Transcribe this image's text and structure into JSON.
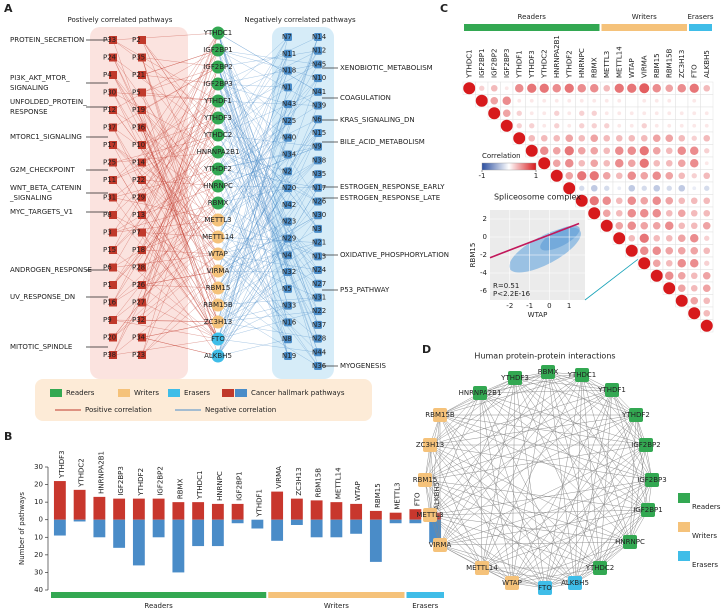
{
  "panels": {
    "a": "A",
    "b": "B",
    "c": "C",
    "d": "D"
  },
  "network": {
    "left_title": "Postively correlated pathways",
    "right_title": "Negatively correlated pathways",
    "positive_color": "#c0392b",
    "negative_color": "#4a8cc8",
    "positive_nodes": [
      [
        "P33",
        "P24",
        "P4",
        "P30",
        "P12",
        "P37",
        "P17",
        "P25",
        "P11",
        "P31",
        "P8",
        "P3",
        "P15",
        "P6",
        "P1",
        "P16",
        "P9",
        "P20",
        "P38"
      ],
      [
        "P2",
        "P35",
        "P21",
        "P5",
        "P19",
        "P36",
        "P10",
        "P14",
        "P22",
        "P29",
        "P13",
        "P7",
        "P18",
        "P28",
        "P26",
        "P27",
        "P32",
        "P34",
        "P23"
      ]
    ],
    "negative_nodes": [
      [
        "N7",
        "N11",
        "N18",
        "N1",
        "N43",
        "N25",
        "N40",
        "N34",
        "N2",
        "N20",
        "N42",
        "N23",
        "N29",
        "N4",
        "N32",
        "N5",
        "N33",
        "N16",
        "N8",
        "N19"
      ],
      [
        "N14",
        "N12",
        "N45",
        "N10",
        "N41",
        "N39",
        "N6",
        "N15",
        "N9",
        "N38",
        "N35",
        "N17",
        "N26",
        "N30",
        "N3",
        "N21",
        "N13",
        "N24",
        "N27",
        "N31",
        "N22",
        "N37",
        "N28",
        "N44",
        "N36"
      ]
    ],
    "genes": [
      {
        "name": "YTHDC1",
        "color": "#33a852"
      },
      {
        "name": "IGF2BP1",
        "color": "#33a852"
      },
      {
        "name": "IGF2BP2",
        "color": "#33a852"
      },
      {
        "name": "IGF2BP3",
        "color": "#33a852"
      },
      {
        "name": "YTHDF1",
        "color": "#33a852"
      },
      {
        "name": "YTHDF3",
        "color": "#33a852"
      },
      {
        "name": "YTHDC2",
        "color": "#33a852"
      },
      {
        "name": "HNRNPA2B1",
        "color": "#33a852"
      },
      {
        "name": "YTHDF2",
        "color": "#33a852"
      },
      {
        "name": "HNRNPC",
        "color": "#33a852"
      },
      {
        "name": "RBMX",
        "color": "#33a852"
      },
      {
        "name": "METTL3",
        "color": "#f5c27a"
      },
      {
        "name": "METTL14",
        "color": "#f5c27a"
      },
      {
        "name": "WTAP",
        "color": "#f5c27a"
      },
      {
        "name": "VIRMA",
        "color": "#f5c27a"
      },
      {
        "name": "RBM15",
        "color": "#f5c27a"
      },
      {
        "name": "RBM15B",
        "color": "#f5c27a"
      },
      {
        "name": "ZC3H13",
        "color": "#f5c27a"
      },
      {
        "name": "FTO",
        "color": "#3fbde8"
      },
      {
        "name": "ALKBH5",
        "color": "#3fbde8"
      }
    ],
    "left_annotations": [
      [
        "PROTEIN_SECRETION"
      ],
      [
        "PI3K_AKT_MTOR_",
        "SIGNALING"
      ],
      [
        "UNFOLDED_PROTEIN_",
        "RESPONSE"
      ],
      [
        "MTORC1_SIGNALING"
      ],
      [
        "G2M_CHECKPOINT"
      ],
      [
        "WNT_BETA_CATENIN",
        "_SIGNALING"
      ],
      [
        "MYC_TARGETS_V1"
      ],
      [
        "ANDROGEN_RESPONSE"
      ],
      [
        "UV_RESPONSE_DN"
      ],
      [
        "MITOTIC_SPINDLE"
      ]
    ],
    "right_annotations": [
      [
        "XENOBIOTIC_METABOLISM"
      ],
      [
        "COAGULATION"
      ],
      [
        "KRAS_SIGNALING_DN"
      ],
      [
        "BILE_ACID_METABOLISM"
      ],
      [
        "ESTROGEN_RESPONSE_EARLY"
      ],
      [
        "ESTROGEN_RESPONSE_LATE"
      ],
      [
        "OXIDATIVE_PHOSPHORYLATION"
      ],
      [
        "P53_PATHWAY"
      ],
      [
        "MYOGENESIS"
      ]
    ],
    "legend": [
      {
        "label": "Readers",
        "shape": "rect",
        "colors": [
          "#33a852"
        ]
      },
      {
        "label": "Writers",
        "shape": "rect",
        "colors": [
          "#f5c27a"
        ]
      },
      {
        "label": "Erasers",
        "shape": "rect",
        "colors": [
          "#3fbde8"
        ]
      },
      {
        "label": "Cancer hallmark pathways",
        "shape": "rect",
        "colors": [
          "#c0392b",
          "#4a8cc8"
        ]
      },
      {
        "label": "Positive correlation",
        "shape": "line",
        "colors": [
          "#c0392b"
        ]
      },
      {
        "label": "Negative correlation",
        "shape": "line",
        "colors": [
          "#4a8cc8"
        ]
      }
    ]
  },
  "chart_data": [
    {
      "type": "bar",
      "y_label": "Number of pathways",
      "categories": [
        "YTHDF3",
        "YTHDC2",
        "HNRNPA2B1",
        "IGF2BP3",
        "YTHDF2",
        "IGF2BP2",
        "RBMX",
        "YTHDC1",
        "HNRNPC",
        "IGF2BP1",
        "YTHDF1",
        "VIRMA",
        "ZC3H13",
        "RBM15B",
        "METTL14",
        "WTAP",
        "RBM15",
        "METTL3",
        "FTO",
        "ALKBH5"
      ],
      "series": [
        {
          "color": "#c8372d",
          "values": [
            22,
            17,
            13,
            12,
            12,
            12,
            10,
            10,
            9,
            9,
            0,
            16,
            12,
            11,
            10,
            9,
            5,
            4,
            6,
            4
          ]
        },
        {
          "color": "#4a8cc8",
          "values": [
            -9,
            -1,
            -10,
            -16,
            -26,
            -10,
            -30,
            -15,
            -15,
            -2,
            -5,
            -12,
            -3,
            -10,
            -10,
            -8,
            -24,
            -2,
            -2,
            -13
          ]
        }
      ],
      "ylim": [
        -40,
        30
      ],
      "yticks": [
        30,
        20,
        10,
        0,
        {
          "value": -10,
          "label": "10"
        },
        {
          "value": -20,
          "label": "20"
        },
        {
          "value": -30,
          "label": "30"
        },
        {
          "value": -40,
          "label": "40"
        }
      ],
      "groups": [
        {
          "label": "Readers",
          "color": "#33a852",
          "size": 11
        },
        {
          "label": "Writers",
          "color": "#f5c27a",
          "size": 7
        },
        {
          "label": "Erasers",
          "color": "#3fbde8",
          "size": 2
        }
      ]
    },
    {
      "type": "heatmap",
      "categories": [
        "YTHDC1",
        "IGF2BP1",
        "IGF2BP2",
        "IGF2BP3",
        "YTHDF1",
        "YTHDF3",
        "YTHDC2",
        "HNRNPA2B1",
        "YTHDF2",
        "HNRNPC",
        "RBMX",
        "METTL3",
        "METTL14",
        "WTAP",
        "VIRMA",
        "RBM15",
        "RBM15B",
        "ZC3H13",
        "FTO",
        "ALKBH5"
      ],
      "values": [
        [
          1,
          0.2,
          0.3,
          0.1,
          0.5,
          0.6,
          0.6,
          0.5,
          0.6,
          0.5,
          0.5,
          0.3,
          0.6,
          0.6,
          0.7,
          0.5,
          0.4,
          0.5,
          0.6,
          0.3
        ],
        [
          1,
          0.4,
          0.5,
          0.1,
          0.1,
          0.1,
          0.1,
          0.1,
          0.1,
          0.1,
          0.1,
          0.1,
          0,
          0.1,
          0.1,
          0.1,
          0,
          0.1,
          0
        ],
        [
          1,
          0.4,
          0.2,
          0.1,
          0.1,
          0.2,
          0.1,
          0.2,
          0.2,
          0.1,
          0.1,
          0.1,
          0.1,
          0.1,
          0.1,
          0.1,
          0.1,
          0.1
        ],
        [
          1,
          0.2,
          0.2,
          0.1,
          0.2,
          0.1,
          0.2,
          0.2,
          0.2,
          0.1,
          0.1,
          0.2,
          0.1,
          0.1,
          0.1,
          0.1,
          0.1
        ],
        [
          1,
          0.3,
          0.3,
          0.3,
          0.4,
          0.3,
          0.4,
          0.3,
          0.3,
          0.3,
          0.3,
          0.4,
          0.4,
          0.3,
          0.2,
          0.3
        ],
        [
          1,
          0.5,
          0.4,
          0.6,
          0.4,
          0.4,
          0.3,
          0.5,
          0.5,
          0.6,
          0.4,
          0.3,
          0.5,
          0.5,
          0.2
        ],
        [
          1,
          0.4,
          0.5,
          0.3,
          0.4,
          0.3,
          0.5,
          0.4,
          0.6,
          0.3,
          0.3,
          0.4,
          0.5,
          0.1
        ],
        [
          1,
          0.4,
          0.6,
          0.6,
          0.4,
          0.3,
          0.5,
          0.4,
          0.5,
          0.4,
          0.3,
          0.2,
          0.3
        ],
        [
          1,
          -0.2,
          -0.3,
          -0.2,
          -0.1,
          -0.3,
          -0.2,
          -0.3,
          -0.2,
          -0.3,
          -0.1,
          -0.2
        ],
        [
          1,
          0.6,
          0.5,
          0.3,
          0.5,
          0.4,
          0.5,
          0.4,
          0.3,
          0.3,
          0.3
        ],
        [
          1,
          0.4,
          0.3,
          0.5,
          0.5,
          0.5,
          0.3,
          0.4,
          0.3,
          0.3
        ],
        [
          1,
          0.4,
          0.5,
          0.4,
          0.4,
          0.5,
          0.3,
          0.3,
          0.4
        ],
        [
          1,
          0.3,
          0.6,
          0.3,
          0.3,
          0.4,
          0.5,
          0.2
        ],
        [
          1,
          0.5,
          0.5,
          0.4,
          0.4,
          0.4,
          0.3
        ],
        [
          1,
          0.4,
          0.3,
          0.5,
          0.5,
          0.2
        ],
        [
          1,
          0.5,
          0.4,
          0.3,
          0.4
        ],
        [
          1,
          0.4,
          0.3,
          0.4
        ],
        [
          1,
          0.4,
          0.3
        ],
        [
          1,
          0.3
        ],
        [
          1
        ]
      ],
      "colorbar": {
        "label": "Correlation",
        "lim": [
          -1,
          1
        ],
        "ticks": [
          -1,
          1
        ],
        "low_color": "#2c4fa0",
        "high_color": "#d7191c"
      },
      "groups": [
        {
          "label": "Readers",
          "color": "#33a852",
          "size": 11
        },
        {
          "label": "Writers",
          "color": "#f5c27a",
          "size": 7
        },
        {
          "label": "Erasers",
          "color": "#3fbde8",
          "size": 2
        }
      ]
    },
    {
      "type": "scatter",
      "title": "Spliceosome complex",
      "x_label": "WTAP",
      "y_label": "RBM15",
      "xlim": [
        -3,
        1.8
      ],
      "ylim": [
        -7,
        3
      ],
      "xticks": [
        -2,
        -1,
        0,
        1
      ],
      "yticks": [
        2,
        0,
        -2,
        -4,
        -6
      ],
      "fit_line": {
        "x": [
          -3,
          1.5
        ],
        "y": [
          -2.3,
          1.5
        ],
        "color": "#c2185b"
      },
      "point_color": "#7fb3e0",
      "annotations": [
        "R=0.51",
        "P<2.2E-16"
      ]
    }
  ],
  "ppi": {
    "title": "Human protein-protein interactions",
    "nodes": [
      {
        "name": "RBMX",
        "color": "#33a852"
      },
      {
        "name": "YTHDC1",
        "color": "#33a852"
      },
      {
        "name": "YTHDF1",
        "color": "#33a852"
      },
      {
        "name": "YTHDF2",
        "color": "#33a852"
      },
      {
        "name": "IGF2BP2",
        "color": "#33a852"
      },
      {
        "name": "IGF2BP3",
        "color": "#33a852"
      },
      {
        "name": "IGF2BP1",
        "color": "#33a852"
      },
      {
        "name": "HNRNPC",
        "color": "#33a852"
      },
      {
        "name": "YTHDC2",
        "color": "#33a852"
      },
      {
        "name": "ALKBH5",
        "color": "#3fbde8"
      },
      {
        "name": "FTO",
        "color": "#3fbde8"
      },
      {
        "name": "WTAP",
        "color": "#f5c27a"
      },
      {
        "name": "METTL14",
        "color": "#f5c27a"
      },
      {
        "name": "VIRMA",
        "color": "#f5c27a"
      },
      {
        "name": "METTL3",
        "color": "#f5c27a"
      },
      {
        "name": "RBM15",
        "color": "#f5c27a"
      },
      {
        "name": "ZC3H13",
        "color": "#f5c27a"
      },
      {
        "name": "RBM15B",
        "color": "#f5c27a"
      },
      {
        "name": "HNRNPA2B1",
        "color": "#33a852"
      },
      {
        "name": "YTHDF3",
        "color": "#33a852"
      }
    ],
    "legend": [
      {
        "label": "Readers",
        "color": "#33a852"
      },
      {
        "label": "Writers",
        "color": "#f5c27a"
      },
      {
        "label": "Erasers",
        "color": "#3fbde8"
      }
    ]
  }
}
